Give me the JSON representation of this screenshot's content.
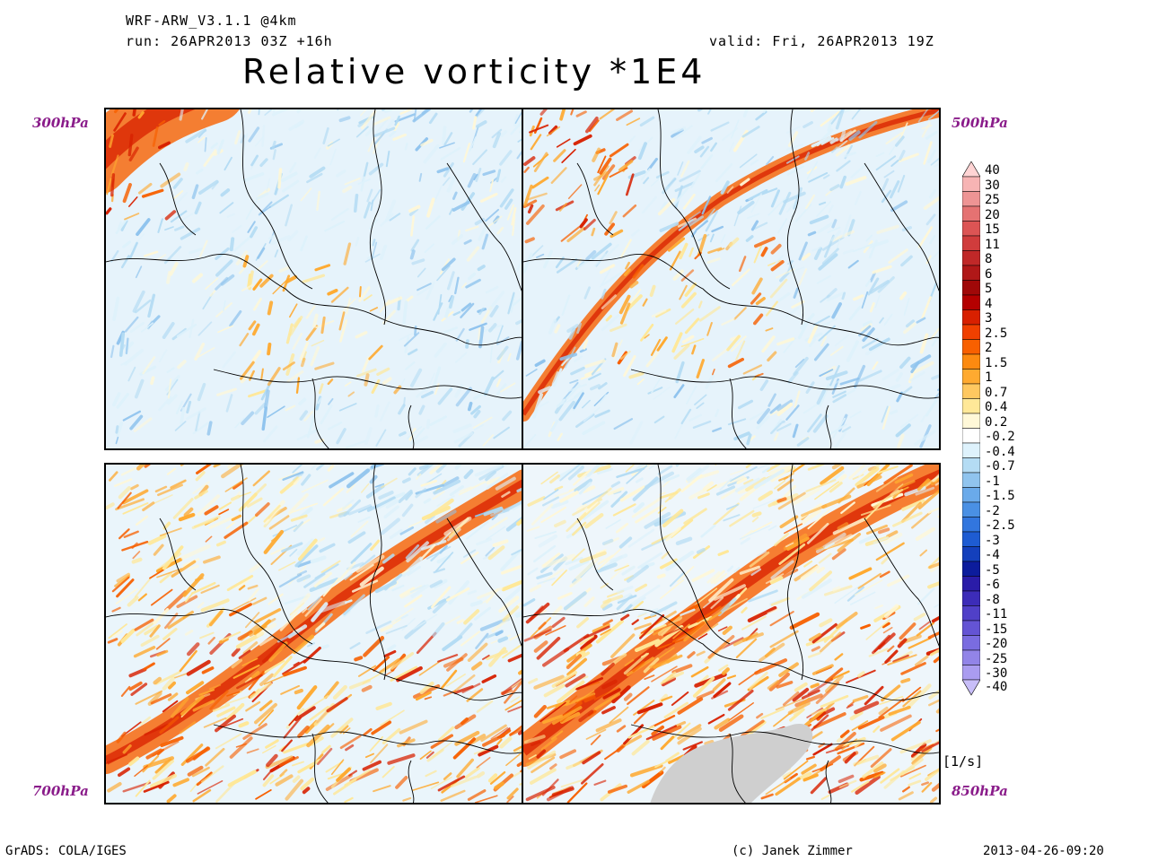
{
  "header": {
    "model": "WRF-ARW_V3.1.1 @4km",
    "run": "run: 26APR2013 03Z +16h",
    "valid": "valid: Fri, 26APR2013 19Z",
    "title": "Relative vorticity *1E4"
  },
  "panels": {
    "top_left": "300hPa",
    "top_right": "500hPa",
    "bottom_left": "700hPa",
    "bottom_right": "850hPa"
  },
  "colorbar": {
    "levels": [
      "40",
      "30",
      "25",
      "20",
      "15",
      "11",
      "8",
      "6",
      "5",
      "4",
      "3",
      "2.5",
      "2",
      "1.5",
      "1",
      "0.7",
      "0.4",
      "0.2",
      "-0.2",
      "-0.4",
      "-0.7",
      "-1",
      "-1.5",
      "-2",
      "-2.5",
      "-3",
      "-4",
      "-5",
      "-6",
      "-8",
      "-11",
      "-15",
      "-20",
      "-25",
      "-30",
      "-40"
    ],
    "colors": [
      "#ffd4d4",
      "#f7b4b4",
      "#ee9494",
      "#e57272",
      "#dc5454",
      "#d03c3c",
      "#c02828",
      "#b01818",
      "#a00808",
      "#b40000",
      "#d82000",
      "#f04000",
      "#f86000",
      "#fc8a10",
      "#ffaa30",
      "#ffc860",
      "#ffe898",
      "#fff8d8",
      "#ffffff",
      "#def2fc",
      "#b4dcf4",
      "#90c4ee",
      "#6aaaea",
      "#4a90e4",
      "#3276de",
      "#1e5cd2",
      "#1440bc",
      "#0c1c9c",
      "#2a1ca8",
      "#3c2cb8",
      "#5040c8",
      "#6454d4",
      "#7a6ce0",
      "#9284e8",
      "#aa9cf0",
      "#c8bef8"
    ],
    "unit": "[1/s]"
  },
  "footer": {
    "left": "GrADS: COLA/IGES",
    "center": "(c) Janek Zimmer",
    "right": "2013-04-26-09:20"
  }
}
